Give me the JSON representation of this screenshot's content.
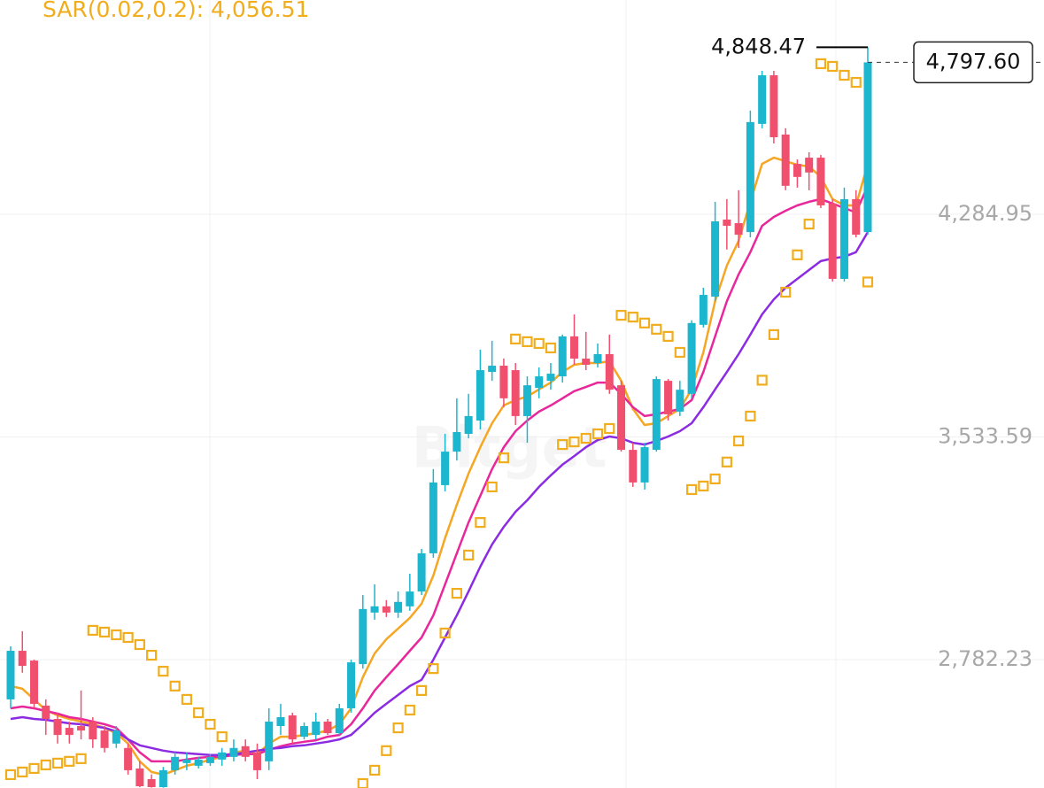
{
  "chart_data": {
    "type": "candlestick",
    "ylim": [
      2349,
      5008
    ],
    "yticks": [
      {
        "value": 2782.23,
        "label": "2,782.23"
      },
      {
        "value": 3533.59,
        "label": "3,533.59"
      },
      {
        "value": 4284.95,
        "label": "4,284.95"
      }
    ],
    "grid": true,
    "up_color": "#1db6cf",
    "down_color": "#f0506e",
    "open": [
      2648,
      2812,
      2779,
      2627,
      2582,
      2552,
      2558,
      2573,
      2543,
      2499,
      2484,
      2415,
      2379,
      2352,
      2409,
      2433,
      2424,
      2433,
      2445,
      2454,
      2490,
      2469,
      2439,
      2558,
      2594,
      2522,
      2528,
      2573,
      2534,
      2618,
      2767,
      2941,
      2962,
      2941,
      2962,
      3012,
      3141,
      3371,
      3484,
      3544,
      3589,
      3753,
      3774,
      3759,
      3604,
      3699,
      3723,
      3738,
      3873,
      3798,
      3783,
      3813,
      3708,
      3490,
      3380,
      3490,
      3723,
      3619,
      3679,
      3912,
      4007,
      4267,
      4255,
      4225,
      4590,
      4754,
      4554,
      4455,
      4476,
      4476,
      4321,
      4067,
      4336,
      4225
    ],
    "high": [
      2827,
      2878,
      2782,
      2648,
      2603,
      2573,
      2678,
      2588,
      2558,
      2558,
      2499,
      2439,
      2395,
      2420,
      2469,
      2469,
      2454,
      2463,
      2484,
      2513,
      2513,
      2499,
      2618,
      2633,
      2603,
      2570,
      2603,
      2582,
      2633,
      2782,
      3000,
      3036,
      2983,
      3012,
      3072,
      3156,
      3425,
      3544,
      3664,
      3679,
      3828,
      3858,
      3798,
      3783,
      3738,
      3768,
      3783,
      3879,
      3947,
      3888,
      3849,
      3879,
      3723,
      3514,
      3514,
      3738,
      3729,
      3723,
      3927,
      4037,
      4327,
      4336,
      4366,
      4635,
      4769,
      4769,
      4575,
      4470,
      4494,
      4485,
      4336,
      4375,
      4366,
      4848.47
    ],
    "low": [
      2618,
      2738,
      2618,
      2528,
      2499,
      2499,
      2513,
      2484,
      2469,
      2484,
      2394,
      2352,
      2350,
      2350,
      2394,
      2409,
      2415,
      2424,
      2424,
      2439,
      2439,
      2379,
      2409,
      2528,
      2499,
      2513,
      2513,
      2528,
      2528,
      2603,
      2752,
      2917,
      2926,
      2923,
      2947,
      3000,
      3126,
      3350,
      3454,
      3529,
      3559,
      3723,
      3634,
      3574,
      3514,
      3664,
      3693,
      3717,
      3777,
      3759,
      3768,
      3679,
      3484,
      3365,
      3356,
      3484,
      3589,
      3604,
      3664,
      3903,
      3992,
      4166,
      4171,
      4207,
      4575,
      4524,
      4366,
      4375,
      4366,
      4306,
      4058,
      4058,
      4207,
      4216
    ],
    "close": [
      2812,
      2761,
      2633,
      2582,
      2528,
      2528,
      2543,
      2513,
      2484,
      2543,
      2409,
      2355,
      2352,
      2409,
      2454,
      2445,
      2445,
      2454,
      2469,
      2484,
      2454,
      2409,
      2573,
      2588,
      2513,
      2558,
      2573,
      2534,
      2618,
      2773,
      2953,
      2962,
      2941,
      2977,
      3012,
      3141,
      3380,
      3484,
      3550,
      3604,
      3759,
      3774,
      3664,
      3604,
      3708,
      3738,
      3747,
      3873,
      3798,
      3777,
      3813,
      3693,
      3490,
      3380,
      3499,
      3729,
      3610,
      3693,
      3918,
      4013,
      4261,
      4246,
      4216,
      4596,
      4754,
      4545,
      4381,
      4411,
      4426,
      4315,
      4067,
      4336,
      4216,
      4797.6
    ],
    "series": [
      {
        "color": "#f5a623",
        "values": [
          2693,
          2684,
          2648,
          2612,
          2594,
          2582,
          2573,
          2564,
          2552,
          2534,
          2499,
          2439,
          2403,
          2394,
          2409,
          2424,
          2433,
          2445,
          2454,
          2469,
          2475,
          2463,
          2499,
          2522,
          2522,
          2528,
          2534,
          2543,
          2564,
          2618,
          2723,
          2803,
          2851,
          2887,
          2923,
          2971,
          3066,
          3192,
          3305,
          3410,
          3499,
          3580,
          3640,
          3658,
          3670,
          3694,
          3717,
          3753,
          3777,
          3783,
          3783,
          3789,
          3723,
          3628,
          3574,
          3580,
          3604,
          3628,
          3694,
          3819,
          3992,
          4112,
          4195,
          4327,
          4455,
          4476,
          4464,
          4452,
          4446,
          4411,
          4336,
          4315,
          4315,
          4455
        ]
      },
      {
        "color": "#e8279b",
        "values": [
          2618,
          2624,
          2618,
          2609,
          2600,
          2588,
          2582,
          2573,
          2564,
          2552,
          2513,
          2469,
          2439,
          2439,
          2439,
          2445,
          2451,
          2454,
          2454,
          2460,
          2463,
          2463,
          2478,
          2490,
          2499,
          2505,
          2510,
          2522,
          2528,
          2564,
          2618,
          2678,
          2723,
          2767,
          2812,
          2857,
          2932,
          3036,
          3141,
          3245,
          3335,
          3425,
          3499,
          3553,
          3589,
          3619,
          3640,
          3664,
          3688,
          3702,
          3717,
          3717,
          3679,
          3634,
          3604,
          3610,
          3619,
          3628,
          3658,
          3753,
          3873,
          3992,
          4082,
          4157,
          4246,
          4276,
          4297,
          4315,
          4327,
          4336,
          4321,
          4306,
          4291,
          4381
        ]
      },
      {
        "color": "#8b2be2",
        "values": [
          2582,
          2588,
          2582,
          2579,
          2573,
          2567,
          2564,
          2558,
          2552,
          2540,
          2513,
          2493,
          2484,
          2475,
          2469,
          2466,
          2463,
          2460,
          2460,
          2463,
          2469,
          2475,
          2481,
          2484,
          2490,
          2493,
          2499,
          2505,
          2513,
          2528,
          2564,
          2603,
          2633,
          2663,
          2693,
          2714,
          2782,
          2857,
          2932,
          3012,
          3096,
          3171,
          3230,
          3281,
          3320,
          3365,
          3404,
          3440,
          3469,
          3499,
          3523,
          3535,
          3529,
          3514,
          3508,
          3520,
          3535,
          3553,
          3580,
          3634,
          3694,
          3753,
          3813,
          3879,
          3947,
          3998,
          4037,
          4067,
          4097,
          4127,
          4136,
          4142,
          4157,
          4225
        ]
      }
    ],
    "sar": {
      "label": "SAR(0.02,0.2): 4,056.51",
      "color": "#f0ad1e",
      "values": [
        2394,
        2403,
        2415,
        2427,
        2433,
        2439,
        2448,
        2881,
        2875,
        2866,
        2857,
        2833,
        2797,
        2743,
        2693,
        2648,
        2603,
        2564,
        2522,
        null,
        null,
        null,
        null,
        null,
        null,
        null,
        null,
        null,
        null,
        null,
        2364,
        2409,
        2475,
        2552,
        2612,
        2678,
        2752,
        2872,
        3006,
        3135,
        3245,
        3365,
        3463,
        3864,
        3855,
        3849,
        3834,
        3508,
        3517,
        3529,
        3544,
        3562,
        3944,
        3938,
        3918,
        3897,
        3873,
        3819,
        3356,
        3368,
        3392,
        3449,
        3520,
        3604,
        3725,
        3879,
        4022,
        4148,
        4252,
        4793,
        4784,
        4754,
        4730,
        4056.51
      ]
    },
    "high_label": "4,848.47",
    "last_label": "4,797.60",
    "watermark": "Bitget"
  }
}
